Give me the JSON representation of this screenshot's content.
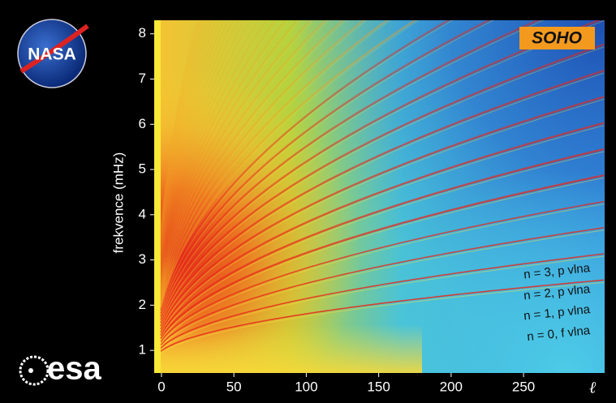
{
  "chart_data": {
    "type": "heatmap",
    "y_label": "frekvence (mHz)",
    "x_label": "ℓ",
    "xlim": [
      -5,
      306
    ],
    "ylim": [
      0.5,
      8.3
    ],
    "xticks": [
      0,
      50,
      100,
      150,
      200,
      250
    ],
    "yticks": [
      1,
      2,
      3,
      4,
      5,
      6,
      7,
      8
    ],
    "annotations": [
      "n = 3, p vlna",
      "n = 2, p vlna",
      "n = 1, p vlna",
      "n = 0, f vlna"
    ]
  },
  "logos": {
    "nasa": "NASA",
    "soho": "SOHO",
    "esa": "esa"
  }
}
